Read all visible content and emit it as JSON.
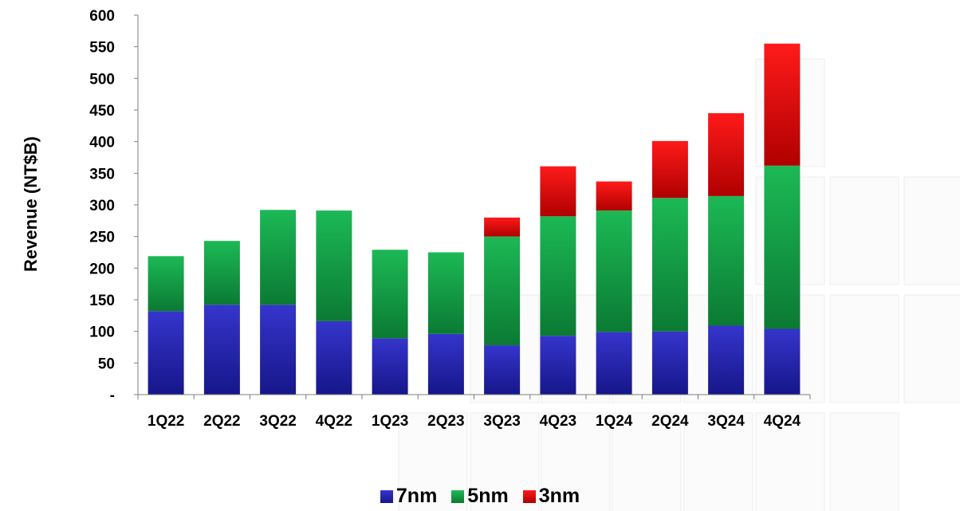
{
  "chart_data": {
    "type": "bar",
    "stacked": true,
    "title": "",
    "xlabel": "",
    "ylabel": "Revenue (NT$B)",
    "ylim": [
      0,
      600
    ],
    "yticks": [
      0,
      50,
      100,
      150,
      200,
      250,
      300,
      350,
      400,
      450,
      500,
      550,
      600
    ],
    "ytick_labels": [
      "-",
      "50",
      "100",
      "150",
      "200",
      "250",
      "300",
      "350",
      "400",
      "450",
      "500",
      "550",
      "600"
    ],
    "categories": [
      "1Q22",
      "2Q22",
      "3Q22",
      "4Q22",
      "1Q23",
      "2Q23",
      "3Q23",
      "4Q23",
      "1Q24",
      "2Q24",
      "3Q24",
      "4Q24"
    ],
    "series": [
      {
        "name": "7nm",
        "color": "#2a2ab8",
        "values": [
          132,
          142,
          142,
          116,
          89,
          96,
          78,
          93,
          99,
          100,
          109,
          104
        ]
      },
      {
        "name": "5nm",
        "color": "#14a84a",
        "values": [
          87,
          101,
          150,
          175,
          140,
          129,
          172,
          189,
          192,
          211,
          205,
          258
        ]
      },
      {
        "name": "3nm",
        "color": "#ff0d0d",
        "values": [
          0,
          0,
          0,
          0,
          0,
          0,
          30,
          79,
          46,
          90,
          131,
          193
        ]
      }
    ],
    "grid": false,
    "legend_position": "bottom"
  }
}
